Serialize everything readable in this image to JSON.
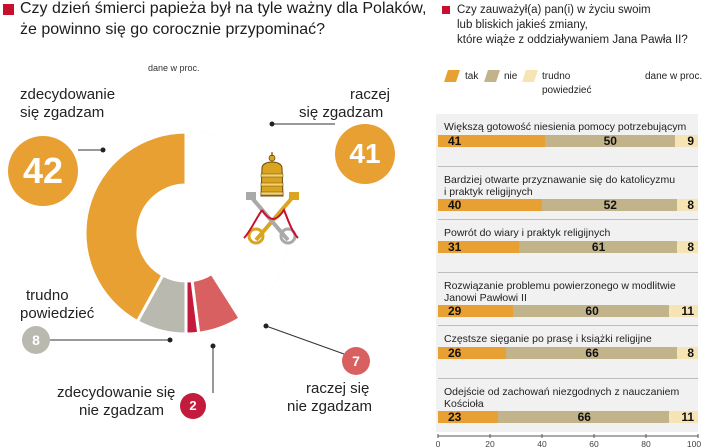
{
  "colors": {
    "tak": "#e8a033",
    "nie": "#c1b48a",
    "trudno": "#f7e4b5",
    "accent_red": "#c8102e",
    "gray": "#bab9b0",
    "pink": "#d96060",
    "dark_red": "#c21b3b"
  },
  "left": {
    "title_line1": "Czy dzień śmierci papieża był na tyle ważny dla Polaków,",
    "title_line2": "że powinno się go corocznie przypominać?",
    "unit_note": "dane w proc.",
    "emblem_icon": "vatican-keys-emblem"
  },
  "right": {
    "title_line1": "Czy zauważył(a) pan(i) w życiu swoim",
    "title_line2": "lub bliskich jakieś zmiany,",
    "title_line3": "które wiąże z oddziaływaniem Jana Pawła II?",
    "unit_note": "dane w proc.",
    "legend": {
      "tak": "tak",
      "nie": "nie",
      "trudno_line1": "trudno",
      "trudno_line2": "powiedzieć"
    }
  },
  "chart_data": [
    {
      "type": "pie",
      "slices": [
        {
          "label": "zdecydowanie się zgadzam",
          "value": 42,
          "color": "#e8a033"
        },
        {
          "label": "raczej się zgadzam",
          "value": 41,
          "color": "#ffffff"
        },
        {
          "label": "raczej się nie zgadzam",
          "value": 7,
          "color": "#d96060"
        },
        {
          "label": "zdecydowanie się nie zgadzam",
          "value": 2,
          "color": "#c21b3b"
        },
        {
          "label": "trudno powiedzieć",
          "value": 8,
          "color": "#bab9b0"
        }
      ],
      "labels": {
        "zz_line1": "zdecydowanie",
        "zz_line2": "się zgadzam",
        "rz_line1": "raczej",
        "rz_line2": "się zgadzam",
        "tp_line1": "trudno",
        "tp_line2": "powiedzieć",
        "znz_line1": "zdecydowanie się",
        "znz_line2": "nie zgadzam",
        "rnz_line1": "raczej się",
        "rnz_line2": "nie zgadzam"
      },
      "value_labels": {
        "zz": "42",
        "rz": "41",
        "tp": "8",
        "znz": "2",
        "rnz": "7"
      }
    },
    {
      "type": "bar",
      "stacked": true,
      "orientation": "horizontal",
      "categories": [
        "Większą gotowość niesienia pomocy potrzebującym",
        "Bardziej otwarte przyznawanie się do katolicyzmu i praktyk religijnych",
        "Powrót do wiary i praktyk religijnych",
        "Rozwiązanie problemu powierzonego w modlitwie Janowi Pawłowi II",
        "Częstsze sięganie po prasę i książki religijne",
        "Odejście od zachowań niezgodnych z nauczaniem Kościoła"
      ],
      "category_lines": [
        [
          "Większą gotowość niesienia pomocy potrzebującym"
        ],
        [
          "Bardziej otwarte przyznawanie się do katolicyzmu",
          "i praktyk religijnych"
        ],
        [
          "Powrót do wiary i praktyk religijnych"
        ],
        [
          "Rozwiązanie problemu powierzonego w modlitwie",
          "Janowi Pawłowi II"
        ],
        [
          "Częstsze sięganie po prasę  i książki religijne"
        ],
        [
          "Odejście od zachowań niezgodnych z nauczaniem",
          "Kościoła"
        ]
      ],
      "series": [
        {
          "name": "tak",
          "values": [
            41,
            40,
            31,
            29,
            26,
            23
          ]
        },
        {
          "name": "nie",
          "values": [
            50,
            52,
            61,
            60,
            66,
            66
          ]
        },
        {
          "name": "trudno powiedzieć",
          "values": [
            9,
            8,
            8,
            11,
            8,
            11
          ]
        }
      ],
      "xlim": [
        0,
        100
      ],
      "xticks": [
        "0",
        "20",
        "40",
        "60",
        "80",
        "100"
      ]
    }
  ]
}
